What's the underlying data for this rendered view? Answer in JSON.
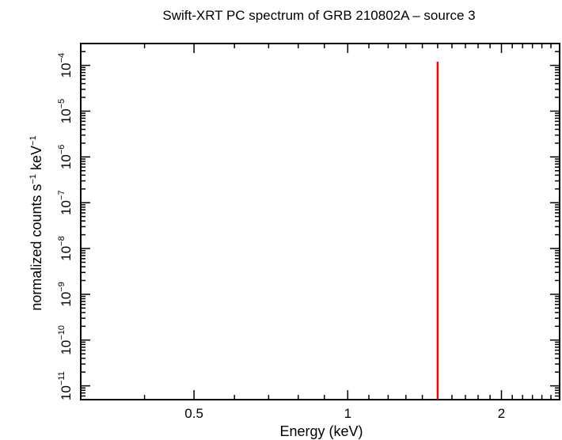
{
  "chart_data": {
    "type": "line",
    "title": "Swift-XRT PC spectrum of GRB 210802A – source 3",
    "xlabel": "Energy (keV)",
    "ylabel_base": "normalized counts s",
    "ylabel_exp1": "−1",
    "ylabel_mid": " keV",
    "ylabel_exp2": "−1",
    "x_scale": "log",
    "y_scale": "log",
    "xlim": [
      0.3,
      2.6
    ],
    "ylim": [
      5e-12,
      0.0003
    ],
    "x_ticks": [
      {
        "value": 0.5,
        "label": "0.5"
      },
      {
        "value": 1,
        "label": "1"
      },
      {
        "value": 2,
        "label": "2"
      }
    ],
    "y_ticks": [
      {
        "value": 1e-11,
        "base": "10",
        "exp": "−11"
      },
      {
        "value": 1e-10,
        "base": "10",
        "exp": "−10"
      },
      {
        "value": 1e-09,
        "base": "10",
        "exp": "−9"
      },
      {
        "value": 1e-08,
        "base": "10",
        "exp": "−8"
      },
      {
        "value": 1e-07,
        "base": "10",
        "exp": "−7"
      },
      {
        "value": 1e-06,
        "base": "10",
        "exp": "−6"
      },
      {
        "value": 1e-05,
        "base": "10",
        "exp": "−5"
      },
      {
        "value": 0.0001,
        "base": "10",
        "exp": "−4"
      }
    ],
    "series": [
      {
        "color": "#ff0000",
        "points": [
          [
            1.5,
            5e-12
          ],
          [
            1.5,
            0.00012
          ]
        ]
      }
    ],
    "grid": false,
    "legend": "none"
  }
}
